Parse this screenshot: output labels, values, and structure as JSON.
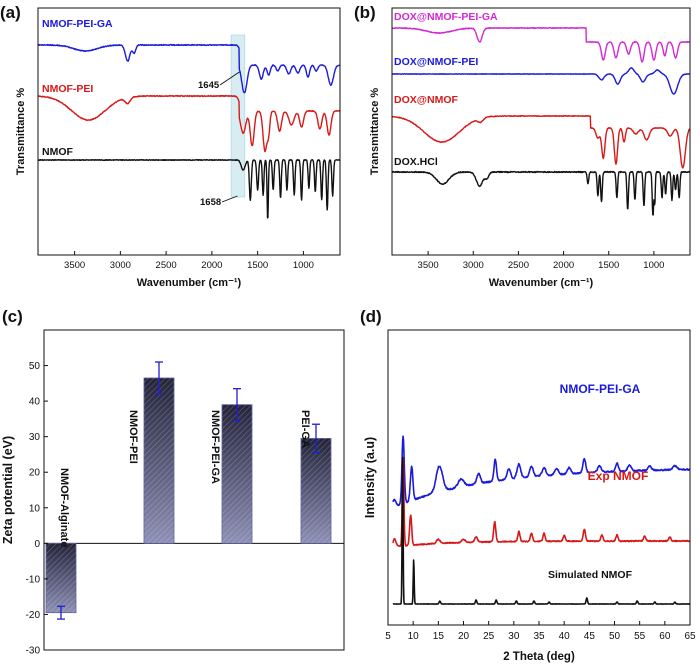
{
  "chart_data": [
    {
      "panel": "(a)",
      "type": "line",
      "xlabel": "Wavenumber (cm⁻¹)",
      "ylabel": "Transmittance %",
      "xlim": [
        3900,
        600
      ],
      "x_reversed": true,
      "x_ticks": [
        3500,
        3000,
        2500,
        2000,
        1500,
        1000
      ],
      "annotations": [
        "1645",
        "1658"
      ],
      "highlight_band": [
        1790,
        1640
      ],
      "series": [
        {
          "name": "NMOF-PEI-GA",
          "color": "#1a1adb"
        },
        {
          "name": "NMOF-PEI",
          "color": "#d81818"
        },
        {
          "name": "NMOF",
          "color": "#111111"
        }
      ]
    },
    {
      "panel": "(b)",
      "type": "line",
      "xlabel": "Wavenumber (cm⁻¹)",
      "ylabel": "Transmittance %",
      "xlim": [
        3900,
        600
      ],
      "x_reversed": true,
      "x_ticks": [
        3500,
        3000,
        2500,
        2000,
        1500,
        1000
      ],
      "series": [
        {
          "name": "DOX@NMOF-PEI-GA",
          "color": "#d22ad2"
        },
        {
          "name": "DOX@NMOF-PEI",
          "color": "#1a1adb"
        },
        {
          "name": "DOX@NMOF",
          "color": "#d81818"
        },
        {
          "name": "DOX.HCl",
          "color": "#111111"
        }
      ]
    },
    {
      "panel": "(c)",
      "type": "bar",
      "ylabel": "Zeta potential (eV)",
      "ylim": [
        -30,
        60
      ],
      "y_ticks": [
        -30,
        -20,
        -10,
        0,
        10,
        20,
        30,
        40,
        50
      ],
      "categories": [
        "NMOF-Alginate",
        "NMOF-PEI",
        "NMOF-PEI-GA",
        "PEI-GA"
      ],
      "values": [
        -19.5,
        46.5,
        39,
        29.5
      ],
      "errors": [
        1.8,
        4.5,
        4.5,
        4
      ]
    },
    {
      "panel": "(d)",
      "type": "line",
      "xlabel": "2 Theta (deg)",
      "ylabel": "Intensity (a.u)",
      "xlim": [
        5,
        65
      ],
      "x_ticks": [
        5,
        10,
        15,
        20,
        25,
        30,
        35,
        40,
        45,
        50,
        55,
        60,
        65
      ],
      "series": [
        {
          "name": "NMOF-PEI-GA",
          "color": "#1a1adb"
        },
        {
          "name": "Exp NMOF",
          "color": "#d81818"
        },
        {
          "name": "Simulated NMOF",
          "color": "#111111"
        }
      ]
    }
  ]
}
